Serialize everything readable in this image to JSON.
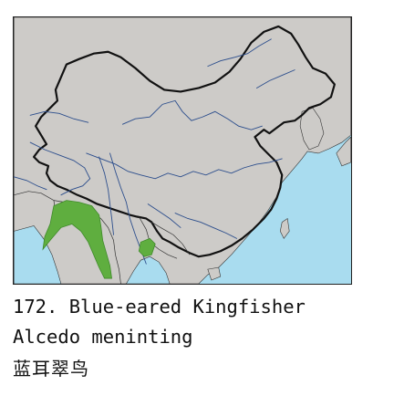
{
  "caption": {
    "title": "172. Blue-eared Kingfisher",
    "scientific_name": "Alcedo meninting",
    "chinese_name": "蓝耳翠鸟"
  },
  "map": {
    "colors": {
      "sea": "#a9dcef",
      "land": "#cdcbc8",
      "river": "#2b4d8c",
      "border": "#111111",
      "range": "#5fae3f"
    }
  }
}
